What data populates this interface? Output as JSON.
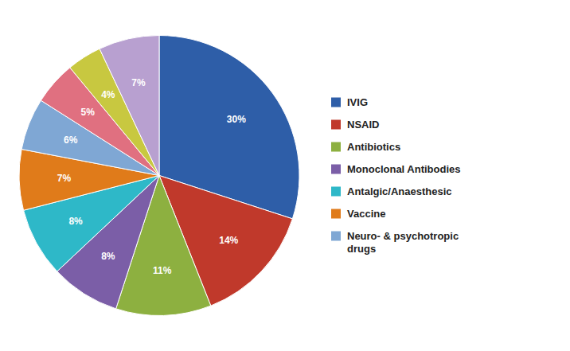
{
  "chart_data": {
    "type": "pie",
    "categories": [
      "IVIG",
      "NSAID",
      "Antibiotics",
      "Monoclonal Antibodies",
      "Antalgic/Anaesthesic",
      "Vaccine",
      "Neuro- & psychotropic\ndrugs",
      null,
      null,
      null
    ],
    "values": [
      30,
      14,
      11,
      8,
      8,
      7,
      6,
      5,
      4,
      7
    ],
    "value_labels": [
      "30%",
      "14%",
      "11%",
      "8%",
      "8%",
      "7%",
      "6%",
      "5%",
      "4%",
      "7%"
    ],
    "colors": [
      "#2e5ea8",
      "#c0392b",
      "#8db040",
      "#7b5ea7",
      "#2eb8c8",
      "#e07b1a",
      "#7fa7d4",
      "#e07080",
      "#c8c840",
      "#b8a0d0"
    ],
    "data_labels": true,
    "legend": "right"
  }
}
